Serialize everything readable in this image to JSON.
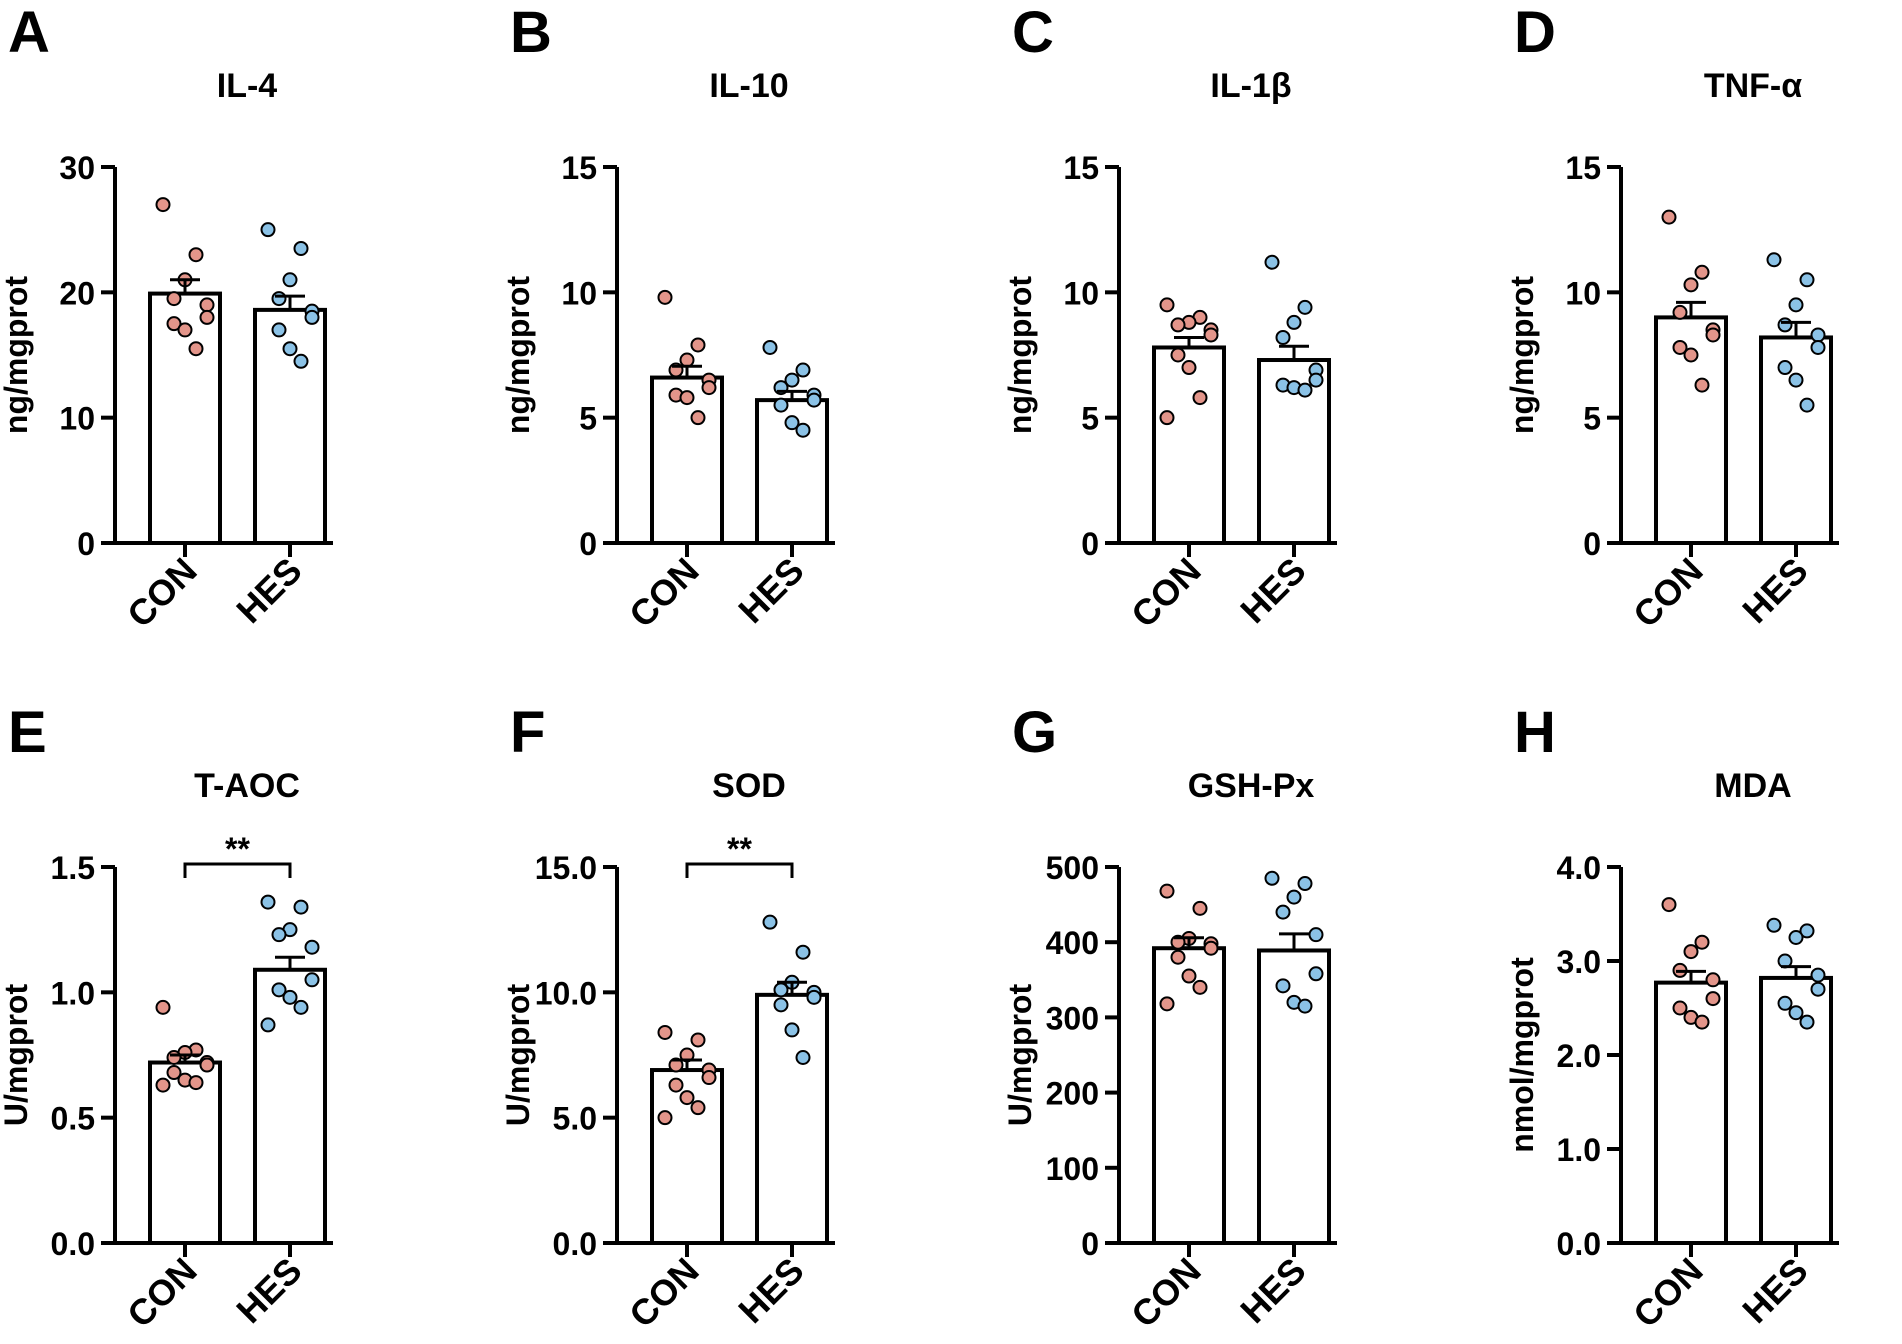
{
  "colors": {
    "con_point": "#e3958a",
    "hes_point": "#8bc2e6",
    "axis": "#000000",
    "bar_fill": "#ffffff"
  },
  "chart_data": [
    {
      "panel": "A",
      "type": "bar",
      "title": "IL-4",
      "ylabel": "ng/mgprot",
      "categories": [
        "CON",
        "HES"
      ],
      "ylim": [
        0,
        30
      ],
      "yticks": [
        "0",
        "10",
        "20",
        "30"
      ],
      "means": [
        19.9,
        18.6
      ],
      "sem": [
        1.1,
        1.1
      ],
      "points": [
        [
          27.0,
          23.0,
          21.0,
          19.5,
          19.0,
          18.0,
          17.5,
          17.0,
          15.5
        ],
        [
          25.0,
          23.5,
          21.0,
          19.5,
          18.5,
          18.0,
          17.0,
          15.5,
          14.5
        ]
      ],
      "significance": ""
    },
    {
      "panel": "B",
      "type": "bar",
      "title": "IL-10",
      "ylabel": "ng/mgprot",
      "categories": [
        "CON",
        "HES"
      ],
      "ylim": [
        0,
        15
      ],
      "yticks": [
        "0",
        "5",
        "10",
        "15"
      ],
      "means": [
        6.6,
        5.7
      ],
      "sem": [
        0.45,
        0.35
      ],
      "points": [
        [
          9.8,
          7.9,
          7.3,
          6.9,
          6.5,
          6.2,
          5.9,
          5.8,
          5.0
        ],
        [
          7.8,
          6.9,
          6.5,
          6.2,
          5.9,
          5.7,
          5.5,
          4.8,
          4.5
        ]
      ],
      "significance": ""
    },
    {
      "panel": "C",
      "type": "bar",
      "title": "IL-1β",
      "ylabel": "ng/mgprot",
      "categories": [
        "CON",
        "HES"
      ],
      "ylim": [
        0,
        15
      ],
      "yticks": [
        "0",
        "5",
        "10",
        "15"
      ],
      "means": [
        7.8,
        7.3
      ],
      "sem": [
        0.4,
        0.55
      ],
      "points": [
        [
          9.5,
          9.0,
          8.8,
          8.7,
          8.5,
          8.3,
          7.5,
          7.0,
          5.8,
          5.0
        ],
        [
          11.2,
          9.4,
          8.8,
          8.2,
          6.9,
          6.5,
          6.3,
          6.2,
          6.1
        ]
      ],
      "significance": ""
    },
    {
      "panel": "D",
      "type": "bar",
      "title": "TNF-α",
      "ylabel": "ng/mgprot",
      "categories": [
        "CON",
        "HES"
      ],
      "ylim": [
        0,
        15
      ],
      "yticks": [
        "0",
        "5",
        "10",
        "15"
      ],
      "means": [
        9.0,
        8.2
      ],
      "sem": [
        0.6,
        0.6
      ],
      "points": [
        [
          13.0,
          10.8,
          10.3,
          9.2,
          8.5,
          8.3,
          7.8,
          7.5,
          6.3
        ],
        [
          11.3,
          10.5,
          9.5,
          8.7,
          8.3,
          7.8,
          7.0,
          6.5,
          5.5
        ]
      ],
      "significance": ""
    },
    {
      "panel": "E",
      "type": "bar",
      "title": "T-AOC",
      "ylabel": "U/mgprot",
      "categories": [
        "CON",
        "HES"
      ],
      "ylim": [
        0,
        1.5
      ],
      "yticks": [
        "0.0",
        "0.5",
        "1.0",
        "1.5"
      ],
      "means": [
        0.72,
        1.09
      ],
      "sem": [
        0.03,
        0.05
      ],
      "points": [
        [
          0.94,
          0.77,
          0.76,
          0.74,
          0.72,
          0.71,
          0.68,
          0.65,
          0.64,
          0.63
        ],
        [
          1.36,
          1.34,
          1.25,
          1.23,
          1.18,
          1.05,
          1.01,
          0.98,
          0.94,
          0.87
        ]
      ],
      "significance": "**"
    },
    {
      "panel": "F",
      "type": "bar",
      "title": "SOD",
      "ylabel": "U/mgprot",
      "categories": [
        "CON",
        "HES"
      ],
      "ylim": [
        0,
        15
      ],
      "yticks": [
        "0.0",
        "5.0",
        "10.0",
        "15.0"
      ],
      "means": [
        6.9,
        9.9
      ],
      "sem": [
        0.4,
        0.5
      ],
      "points": [
        [
          8.4,
          8.1,
          7.5,
          7.1,
          6.9,
          6.6,
          6.3,
          5.8,
          5.4,
          5.0
        ],
        [
          12.8,
          11.6,
          10.4,
          10.1,
          10.0,
          9.8,
          9.5,
          8.5,
          7.4
        ]
      ],
      "significance": "**"
    },
    {
      "panel": "G",
      "type": "bar",
      "title": "GSH-Px",
      "ylabel": "U/mgprot",
      "categories": [
        "CON",
        "HES"
      ],
      "ylim": [
        0,
        500
      ],
      "yticks": [
        "0",
        "100",
        "200",
        "300",
        "400",
        "500"
      ],
      "means": [
        392,
        389
      ],
      "sem": [
        14,
        22
      ],
      "points": [
        [
          468,
          445,
          405,
          400,
          398,
          392,
          380,
          355,
          340,
          318
        ],
        [
          485,
          478,
          460,
          440,
          410,
          358,
          342,
          320,
          315
        ]
      ],
      "significance": ""
    },
    {
      "panel": "H",
      "type": "bar",
      "title": "MDA",
      "ylabel": "nmol/mgprot",
      "categories": [
        "CON",
        "HES"
      ],
      "ylim": [
        0,
        4.0
      ],
      "yticks": [
        "0.0",
        "1.0",
        "2.0",
        "3.0",
        "4.0"
      ],
      "means": [
        2.77,
        2.82
      ],
      "sem": [
        0.12,
        0.12
      ],
      "points": [
        [
          3.6,
          3.2,
          3.1,
          2.9,
          2.8,
          2.6,
          2.5,
          2.4,
          2.35
        ],
        [
          3.38,
          3.32,
          3.25,
          3.0,
          2.85,
          2.7,
          2.55,
          2.45,
          2.35
        ]
      ],
      "significance": ""
    }
  ]
}
